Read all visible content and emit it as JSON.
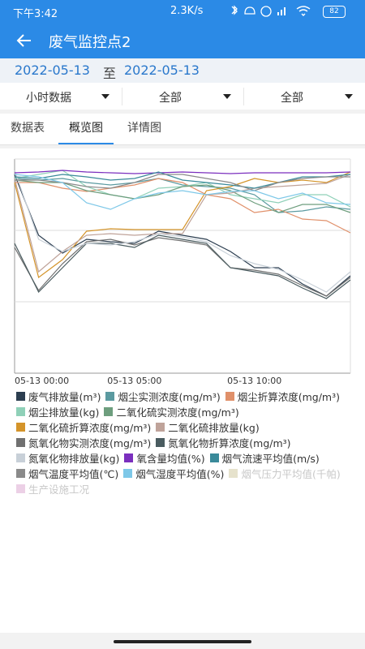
{
  "status_bar": {
    "time": "下午3:42",
    "speed": "2.3K/s",
    "battery": "82"
  },
  "header": {
    "title": "废气监控点2"
  },
  "date_range": {
    "start": "2022-05-13",
    "separator": "至",
    "end": "2022-05-13"
  },
  "filters": [
    "小时数据",
    "全部",
    "全部"
  ],
  "tabs": [
    "数据表",
    "概览图",
    "详情图"
  ],
  "active_tab": 1,
  "chart_data": {
    "type": "line",
    "categories": [
      "05-13 00:00",
      null,
      null,
      null,
      null,
      "05-13 05:00",
      null,
      null,
      null,
      null,
      "05-13 10:00",
      null,
      null,
      null,
      null
    ],
    "ylim": [
      0,
      264
    ],
    "yticks": [
      0,
      88,
      176,
      264
    ],
    "ytick_labels": false,
    "grid": true,
    "series": [
      {
        "name": "废气排放量(m³)",
        "color": "#2c3e50",
        "values": [
          245,
          170,
          148,
          165,
          162,
          160,
          175,
          170,
          165,
          150,
          130,
          130,
          110,
          95,
          120
        ]
      },
      {
        "name": "烟尘实测浓度(mg/m³)",
        "color": "#5b9aa0",
        "values": [
          240,
          238,
          240,
          235,
          232,
          235,
          240,
          232,
          230,
          228,
          220,
          198,
          200,
          205,
          202
        ]
      },
      {
        "name": "烟尘折算浓度(mg/m³)",
        "color": "#e0906a",
        "values": [
          235,
          235,
          228,
          224,
          228,
          232,
          240,
          235,
          220,
          215,
          198,
          202,
          190,
          188,
          173
        ]
      },
      {
        "name": "烟尘排放量(kg)",
        "color": "#8fd0b8",
        "values": [
          240,
          245,
          250,
          230,
          220,
          215,
          228,
          230,
          235,
          220,
          215,
          210,
          220,
          220,
          205
        ]
      },
      {
        "name": "二氧化硫实测浓度(mg/m³)",
        "color": "#6e9e7e",
        "values": [
          238,
          235,
          235,
          225,
          220,
          215,
          220,
          230,
          232,
          225,
          210,
          198,
          208,
          208,
          198
        ]
      },
      {
        "name": "二氧化硫折算浓度(mg/m³)",
        "color": "#d4942a",
        "values": [
          235,
          118,
          140,
          175,
          178,
          177,
          177,
          177,
          225,
          230,
          240,
          235,
          238,
          235,
          248
        ]
      },
      {
        "name": "二氧化硫排放量(kg)",
        "color": "#bfa39a",
        "values": [
          240,
          125,
          150,
          170,
          172,
          170,
          172,
          172,
          220,
          222,
          228,
          230,
          232,
          234,
          245
        ]
      },
      {
        "name": "氮氧化物实测浓度(mg/m³)",
        "color": "#707070",
        "values": [
          155,
          102,
          135,
          162,
          165,
          158,
          167,
          163,
          158,
          130,
          127,
          122,
          108,
          95,
          118
        ]
      },
      {
        "name": "氮氧化物折算浓度(mg/m³)",
        "color": "#4a5c60",
        "values": [
          160,
          100,
          130,
          160,
          160,
          155,
          170,
          165,
          160,
          130,
          125,
          120,
          105,
          92,
          115
        ]
      },
      {
        "name": "氮氧化物排放量(kg)",
        "color": "#c8d0d8",
        "values": [
          250,
          165,
          150,
          160,
          158,
          162,
          172,
          168,
          162,
          145,
          135,
          128,
          115,
          100,
          125
        ]
      },
      {
        "name": "氧含量均值(%)",
        "color": "#7b2fbe",
        "values": [
          247,
          248,
          250,
          248,
          247,
          246,
          247,
          248,
          247,
          246,
          247,
          247,
          247,
          247,
          248
        ]
      },
      {
        "name": "烟气流速平均值(m/s)",
        "color": "#3a8a9a",
        "values": [
          242,
          240,
          245,
          242,
          238,
          240,
          248,
          238,
          235,
          232,
          228,
          235,
          242,
          242,
          245
        ]
      },
      {
        "name": "烟气温度平均值(℃)",
        "color": "#8a8a8a",
        "values": [
          238,
          238,
          235,
          230,
          228,
          235,
          245,
          245,
          240,
          235,
          225,
          235,
          240,
          242,
          242
        ]
      },
      {
        "name": "烟气湿度平均值(%)",
        "color": "#7ec8e8",
        "values": [
          245,
          242,
          235,
          210,
          202,
          215,
          222,
          225,
          220,
          224,
          225,
          215,
          222,
          210,
          208
        ]
      },
      {
        "name": "烟气压力平均值(千帕)",
        "color": "#e6e2cc",
        "hidden": true
      },
      {
        "name": "生产设施工况",
        "color": "#ecd0e6",
        "hidden": true
      }
    ]
  }
}
